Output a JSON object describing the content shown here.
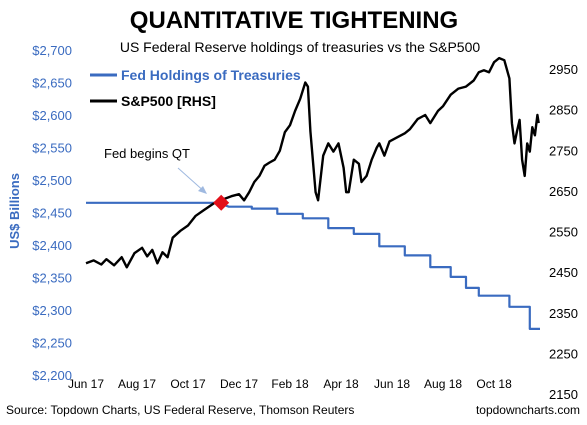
{
  "chart_data": {
    "type": "line",
    "title": "QUANTITATIVE TIGHTENING",
    "subtitle": "US Federal Reserve holdings of treasuries vs the S&P500",
    "ylabel": "US$ Billions",
    "ylim": [
      2200,
      2700
    ],
    "y_ticks": [
      "$2,700",
      "$2,650",
      "$2,600",
      "$2,550",
      "$2,500",
      "$2,450",
      "$2,400",
      "$2,350",
      "$2,300",
      "$2,250",
      "$2,200"
    ],
    "y2lim": [
      2150,
      2950
    ],
    "y2_ticks": [
      "2950",
      "2850",
      "2750",
      "2650",
      "2550",
      "2450",
      "2350",
      "2250",
      "2150"
    ],
    "x_ticks": [
      "Jun 17",
      "Aug 17",
      "Oct 17",
      "Dec 17",
      "Feb 18",
      "Apr 18",
      "Jun 18",
      "Aug 18",
      "Oct 18"
    ],
    "xlim_months": [
      0,
      17.8
    ],
    "series": [
      {
        "name": "Fed Holdings of Treasuries",
        "axis": "left",
        "color": "#3a6bc0",
        "points": [
          [
            0,
            2465
          ],
          [
            5.2,
            2465
          ],
          [
            5.6,
            2459
          ],
          [
            6.5,
            2459
          ],
          [
            6.5,
            2456
          ],
          [
            7.5,
            2456
          ],
          [
            7.5,
            2448
          ],
          [
            8.5,
            2448
          ],
          [
            8.5,
            2441
          ],
          [
            9.5,
            2441
          ],
          [
            9.5,
            2426
          ],
          [
            10.5,
            2426
          ],
          [
            10.5,
            2417
          ],
          [
            11.5,
            2417
          ],
          [
            11.5,
            2398
          ],
          [
            12.5,
            2398
          ],
          [
            12.5,
            2384
          ],
          [
            13.5,
            2384
          ],
          [
            13.5,
            2366
          ],
          [
            14.3,
            2366
          ],
          [
            14.3,
            2351
          ],
          [
            14.9,
            2351
          ],
          [
            14.9,
            2334
          ],
          [
            15.4,
            2334
          ],
          [
            15.4,
            2322
          ],
          [
            16.6,
            2322
          ],
          [
            16.6,
            2305
          ],
          [
            17.4,
            2305
          ],
          [
            17.4,
            2271
          ],
          [
            17.8,
            2271
          ]
        ]
      },
      {
        "name": "S&P500 [RHS]",
        "axis": "right",
        "color": "#000000",
        "points": [
          [
            0,
            2425
          ],
          [
            0.3,
            2432
          ],
          [
            0.6,
            2422
          ],
          [
            0.8,
            2435
          ],
          [
            1.1,
            2420
          ],
          [
            1.4,
            2440
          ],
          [
            1.6,
            2415
          ],
          [
            1.9,
            2450
          ],
          [
            2.2,
            2463
          ],
          [
            2.4,
            2442
          ],
          [
            2.6,
            2458
          ],
          [
            2.8,
            2425
          ],
          [
            3.0,
            2452
          ],
          [
            3.2,
            2440
          ],
          [
            3.4,
            2488
          ],
          [
            3.7,
            2505
          ],
          [
            4.0,
            2518
          ],
          [
            4.3,
            2542
          ],
          [
            4.6,
            2555
          ],
          [
            4.9,
            2568
          ],
          [
            5.1,
            2576
          ],
          [
            5.4,
            2583
          ],
          [
            5.7,
            2590
          ],
          [
            6.0,
            2595
          ],
          [
            6.2,
            2580
          ],
          [
            6.4,
            2600
          ],
          [
            6.6,
            2625
          ],
          [
            6.8,
            2640
          ],
          [
            7.0,
            2665
          ],
          [
            7.2,
            2673
          ],
          [
            7.4,
            2680
          ],
          [
            7.6,
            2702
          ],
          [
            7.8,
            2748
          ],
          [
            8.0,
            2765
          ],
          [
            8.2,
            2800
          ],
          [
            8.4,
            2830
          ],
          [
            8.6,
            2870
          ],
          [
            8.7,
            2860
          ],
          [
            8.8,
            2750
          ],
          [
            9.0,
            2600
          ],
          [
            9.1,
            2580
          ],
          [
            9.3,
            2690
          ],
          [
            9.5,
            2720
          ],
          [
            9.7,
            2700
          ],
          [
            9.9,
            2720
          ],
          [
            10.1,
            2660
          ],
          [
            10.2,
            2600
          ],
          [
            10.3,
            2600
          ],
          [
            10.5,
            2680
          ],
          [
            10.7,
            2670
          ],
          [
            10.8,
            2625
          ],
          [
            11.0,
            2640
          ],
          [
            11.2,
            2680
          ],
          [
            11.4,
            2710
          ],
          [
            11.5,
            2720
          ],
          [
            11.7,
            2690
          ],
          [
            11.9,
            2725
          ],
          [
            12.2,
            2735
          ],
          [
            12.5,
            2745
          ],
          [
            12.7,
            2755
          ],
          [
            13.0,
            2780
          ],
          [
            13.3,
            2790
          ],
          [
            13.5,
            2770
          ],
          [
            13.8,
            2800
          ],
          [
            14.0,
            2812
          ],
          [
            14.3,
            2840
          ],
          [
            14.6,
            2855
          ],
          [
            14.9,
            2860
          ],
          [
            15.2,
            2875
          ],
          [
            15.4,
            2895
          ],
          [
            15.6,
            2900
          ],
          [
            15.8,
            2895
          ],
          [
            16.0,
            2920
          ],
          [
            16.2,
            2930
          ],
          [
            16.4,
            2925
          ],
          [
            16.6,
            2880
          ],
          [
            16.7,
            2770
          ],
          [
            16.8,
            2720
          ],
          [
            16.9,
            2750
          ],
          [
            17.0,
            2778
          ],
          [
            17.1,
            2680
          ],
          [
            17.2,
            2640
          ],
          [
            17.3,
            2720
          ],
          [
            17.4,
            2700
          ],
          [
            17.5,
            2760
          ],
          [
            17.6,
            2740
          ],
          [
            17.7,
            2790
          ],
          [
            17.75,
            2770
          ]
        ]
      }
    ],
    "annotation": {
      "text": "Fed begins QT",
      "point": [
        5.3,
        2465
      ],
      "marker_color": "#e3101a"
    },
    "grid": false,
    "legend_position": "top-left"
  },
  "footer": {
    "source": "Source: Topdown Charts, US Federal Reserve, Thomson Reuters",
    "brand": "topdowncharts.com"
  }
}
